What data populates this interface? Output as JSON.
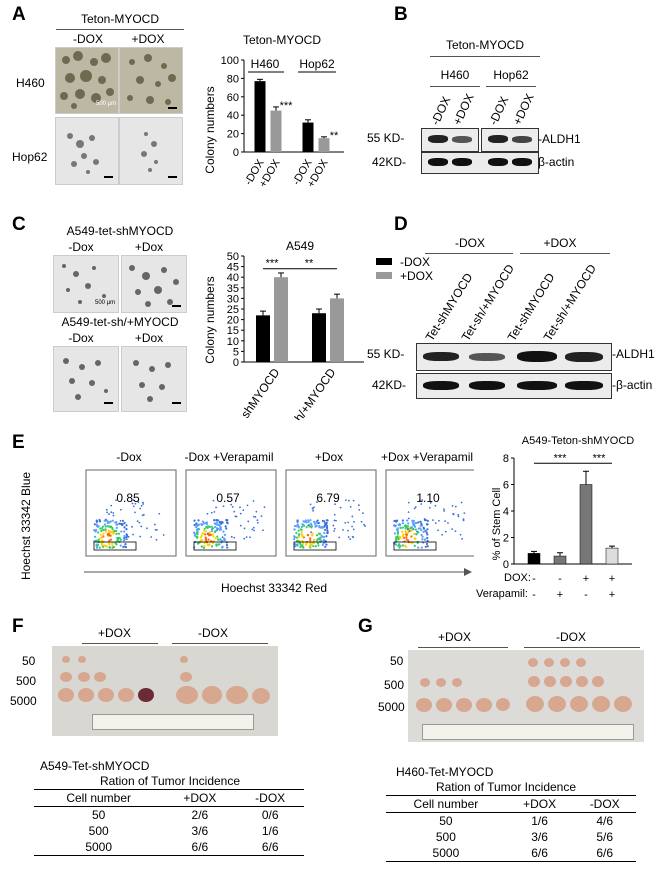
{
  "panels": {
    "A": {
      "letter": "A",
      "title": "Teton-MYOCD",
      "col_dox_minus": "-DOX",
      "col_dox_plus": "+DOX",
      "row1": "H460",
      "row2": "Hop62",
      "scale_text": "500 µm",
      "chart_title": "Teton-MYOCD",
      "group1": "H460",
      "group2": "Hop62"
    },
    "B": {
      "letter": "B",
      "title": "Teton-MYOCD",
      "group1": "H460",
      "group2": "Hop62",
      "lane1": "-DOX",
      "lane2": "+DOX",
      "lane3": "-DOX",
      "lane4": "+DOX",
      "mw1": "55 KD-",
      "mw2": "42KD-",
      "prot1": "-ALDH1",
      "prot2": "β-actin"
    },
    "C": {
      "letter": "C",
      "title1": "A549-tet-shMYOCD",
      "title2": "A549-tet-sh/+MYOCD",
      "col1": "-Dox",
      "col2": "+Dox",
      "col3": "-Dox",
      "col4": "+Dox",
      "scale_text": "500 µm",
      "chart_title": "A549",
      "legend1": "-DOX",
      "legend2": "+DOX"
    },
    "D": {
      "letter": "D",
      "group1": "-DOX",
      "group2": "+DOX",
      "lane1": "Tet-shMYOCD",
      "lane2": "Tet-sh/+MYOCD",
      "lane3": "Tet-shMYOCD",
      "lane4": "Tet-sh/+MYOCD",
      "mw1": "55 KD-",
      "mw2": "42KD-",
      "prot1": "-ALDH1",
      "prot2": "-β-actin"
    },
    "E": {
      "letter": "E",
      "plot1_title": "-Dox",
      "plot2_title": "-Dox +Verapamil",
      "plot3_title": "+Dox",
      "plot4_title": "+Dox +Verapamil",
      "plot1_value": "0.85",
      "plot2_value": "0.57",
      "plot3_value": "6.79",
      "plot4_value": "1.10",
      "ylabel": "Hoechst 33342 Blue",
      "xlabel": "Hoechst 33342 Red",
      "chart_title": "A549-Teton-shMYOCD",
      "dox_label": "DOX:",
      "verapamil_label": "Verapamil:",
      "dox_signs": [
        "-",
        "-",
        "+",
        "+"
      ],
      "verapamil_signs": [
        "-",
        "+",
        "-",
        "+"
      ]
    },
    "F": {
      "letter": "F",
      "plus": "+DOX",
      "minus": "-DOX",
      "rows": [
        "50",
        "500",
        "5000"
      ],
      "table_title": "A549-Tet-shMYOCD",
      "table_subtitle": "Ration of Tumor Incidence",
      "table_header": [
        "Cell number",
        "+DOX",
        "-DOX"
      ],
      "table_rows": [
        [
          "50",
          "2/6",
          "0/6"
        ],
        [
          "500",
          "3/6",
          "1/6"
        ],
        [
          "5000",
          "6/6",
          "6/6"
        ]
      ]
    },
    "G": {
      "letter": "G",
      "plus": "+DOX",
      "minus": "-DOX",
      "rows": [
        "50",
        "500",
        "5000"
      ],
      "table_title": "H460-Tet-MYOCD",
      "table_subtitle": "Ration of Tumor Incidence",
      "table_header": [
        "Cell number",
        "+DOX",
        "-DOX"
      ],
      "table_rows": [
        [
          "50",
          "1/6",
          "4/6"
        ],
        [
          "500",
          "3/6",
          "5/6"
        ],
        [
          "5000",
          "6/6",
          "6/6"
        ]
      ]
    }
  },
  "chart_data": [
    {
      "panel": "A",
      "type": "bar",
      "title": "Teton-MYOCD",
      "ylabel": "Colony numbers",
      "ylim": [
        0,
        100
      ],
      "yticks": [
        0,
        20,
        40,
        60,
        80,
        100
      ],
      "categories": [
        "-DOX",
        "+DOX",
        "-DOX",
        "+DOX"
      ],
      "groups": [
        "H460",
        "Hop62"
      ],
      "values": [
        77,
        45,
        32,
        15
      ],
      "errors": [
        2,
        4,
        3,
        1.5
      ],
      "colors": [
        "#000000",
        "#999999",
        "#000000",
        "#999999"
      ],
      "annotations": [
        {
          "bar": 1,
          "text": "***"
        },
        {
          "bar": 3,
          "text": "**"
        }
      ]
    },
    {
      "panel": "C",
      "type": "bar",
      "title": "A549",
      "ylabel": "Colony numbers",
      "ylim": [
        0,
        50
      ],
      "yticks": [
        0,
        5,
        10,
        15,
        20,
        25,
        30,
        35,
        40,
        45,
        50
      ],
      "categories": [
        "shMYOCD",
        "sh/+MYOCD"
      ],
      "series": [
        {
          "name": "-DOX",
          "values": [
            22,
            23
          ],
          "errors": [
            2,
            2
          ],
          "color": "#000000"
        },
        {
          "name": "+DOX",
          "values": [
            40,
            30
          ],
          "errors": [
            2,
            2
          ],
          "color": "#999999"
        }
      ],
      "annotations": [
        {
          "text": "***"
        },
        {
          "text": "**"
        }
      ]
    },
    {
      "panel": "E",
      "type": "bar",
      "title": "A549-Teton-shMYOCD",
      "ylabel": "% of Stem Cell",
      "ylim": [
        0,
        8
      ],
      "yticks": [
        0,
        2,
        4,
        6,
        8
      ],
      "values": [
        0.8,
        0.6,
        6.0,
        1.2
      ],
      "errors": [
        0.15,
        0.25,
        1.0,
        0.15
      ],
      "colors": [
        "#000000",
        "#777777",
        "#777777",
        "#dddddd"
      ],
      "annotations": [
        {
          "text": "***"
        },
        {
          "text": "***"
        }
      ]
    }
  ]
}
